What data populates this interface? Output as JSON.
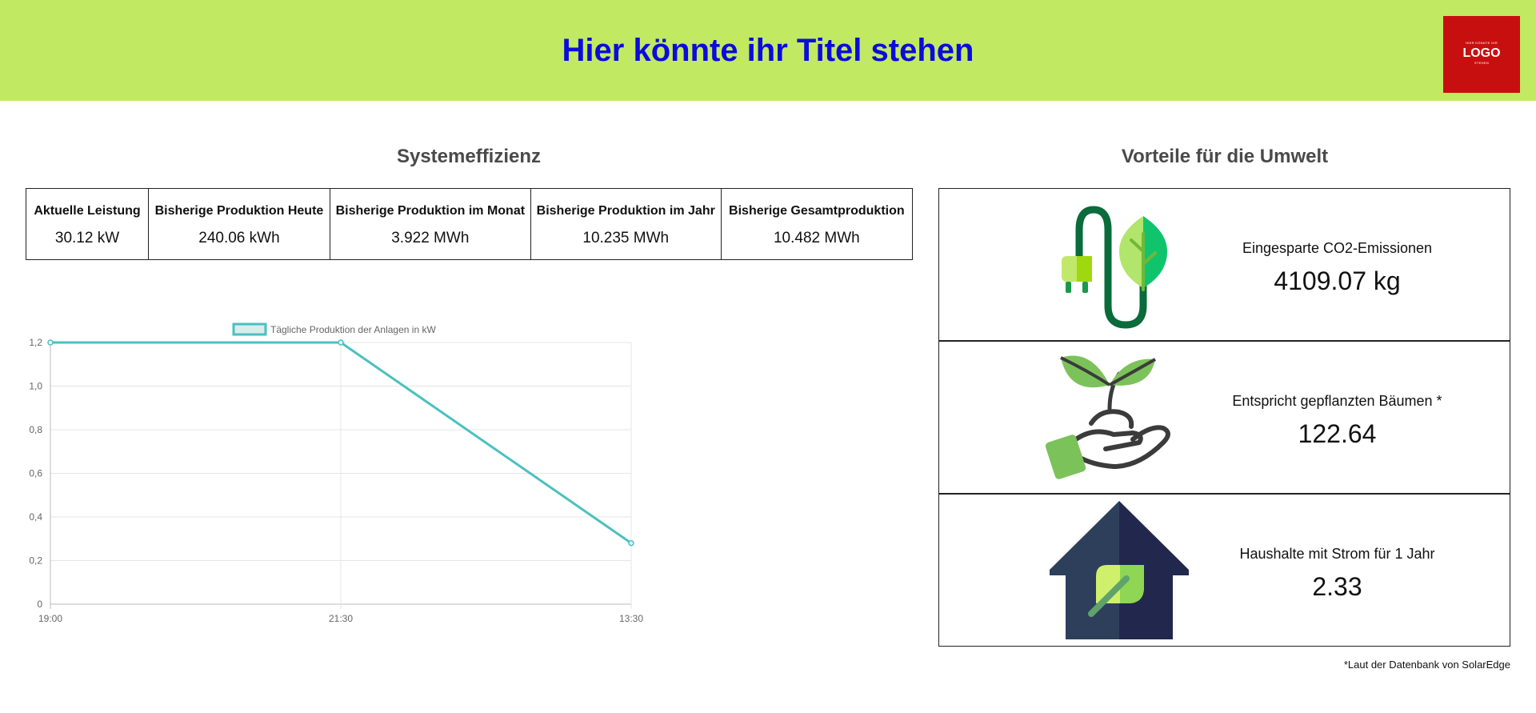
{
  "header": {
    "title": "Hier könnte ihr Titel stehen",
    "logo": {
      "top_text": "HIER KÖNNTE IHR",
      "main_text": "LOGO",
      "bottom_text": "STEHEN",
      "color": "#c80f0f"
    },
    "background_color": "#c1e962",
    "title_color": "#0b0bdd"
  },
  "system": {
    "title": "Systemeffizienz",
    "stats": [
      {
        "label": "Aktuelle Leistung",
        "value": "30.12 kW"
      },
      {
        "label": "Bisherige Produktion Heute",
        "value": "240.06 kWh"
      },
      {
        "label": "Bisherige Produktion im Monat",
        "value": "3.922 MWh"
      },
      {
        "label": "Bisherige Produktion im Jahr",
        "value": "10.235 MWh"
      },
      {
        "label": "Bisherige Gesamtproduktion",
        "value": "10.482 MWh"
      }
    ]
  },
  "chart_data": {
    "type": "line",
    "series": [
      {
        "name": "Tägliche Produktion der Anlagen in kW",
        "color": "#4bc0c0",
        "values": [
          1.2,
          1.2,
          0.28
        ]
      }
    ],
    "categories": [
      "19:00",
      "21:30",
      "13:30"
    ],
    "yticks": [
      "0",
      "0,2",
      "0,4",
      "0,6",
      "0,8",
      "1,0",
      "1,2"
    ],
    "ylim": [
      0,
      1.2
    ],
    "grid": true,
    "legend": "top-center",
    "title": "",
    "xlabel": "",
    "ylabel": ""
  },
  "environment": {
    "title": "Vorteile für die Umwelt",
    "items": [
      {
        "icon": "plug-leaf-icon",
        "label": "Eingesparte CO2-Emissionen",
        "value": "4109.07 kg"
      },
      {
        "icon": "hand-plant-icon",
        "label": "Entspricht gepflanzten Bäumen *",
        "value": "122.64"
      },
      {
        "icon": "house-leaf-icon",
        "label": "Haushalte mit Strom für 1 Jahr",
        "value": "2.33"
      }
    ]
  },
  "footnote": "*Laut der Datenbank von SolarEdge"
}
